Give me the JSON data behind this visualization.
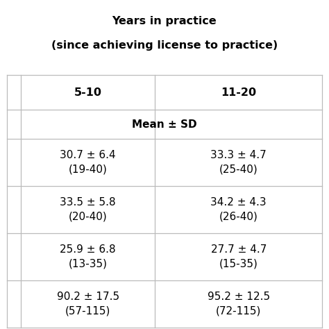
{
  "title_line1": "Years in practice",
  "title_line2": "(since achieving license to practice)",
  "col_headers": [
    "5-10",
    "11-20"
  ],
  "subheader": "Mean ± SD",
  "rows": [
    [
      "30.7 ± 6.4\n(19-40)",
      "33.3 ± 4.7\n(25-40)"
    ],
    [
      "33.5 ± 5.8\n(20-40)",
      "34.2 ± 4.3\n(26-40)"
    ],
    [
      "25.9 ± 6.8\n(13-35)",
      "27.7 ± 4.7\n(15-35)"
    ],
    [
      "90.2 ± 17.5\n(57-115)",
      "95.2 ± 12.5\n(72-115)"
    ]
  ],
  "bg_color": "#ffffff",
  "line_color": "#bbbbbb",
  "text_color": "#000000",
  "title_fontsize": 11.5,
  "header_fontsize": 11.5,
  "subheader_fontsize": 11,
  "cell_fontsize": 11,
  "fig_width": 4.74,
  "fig_height": 4.74,
  "dpi": 100
}
